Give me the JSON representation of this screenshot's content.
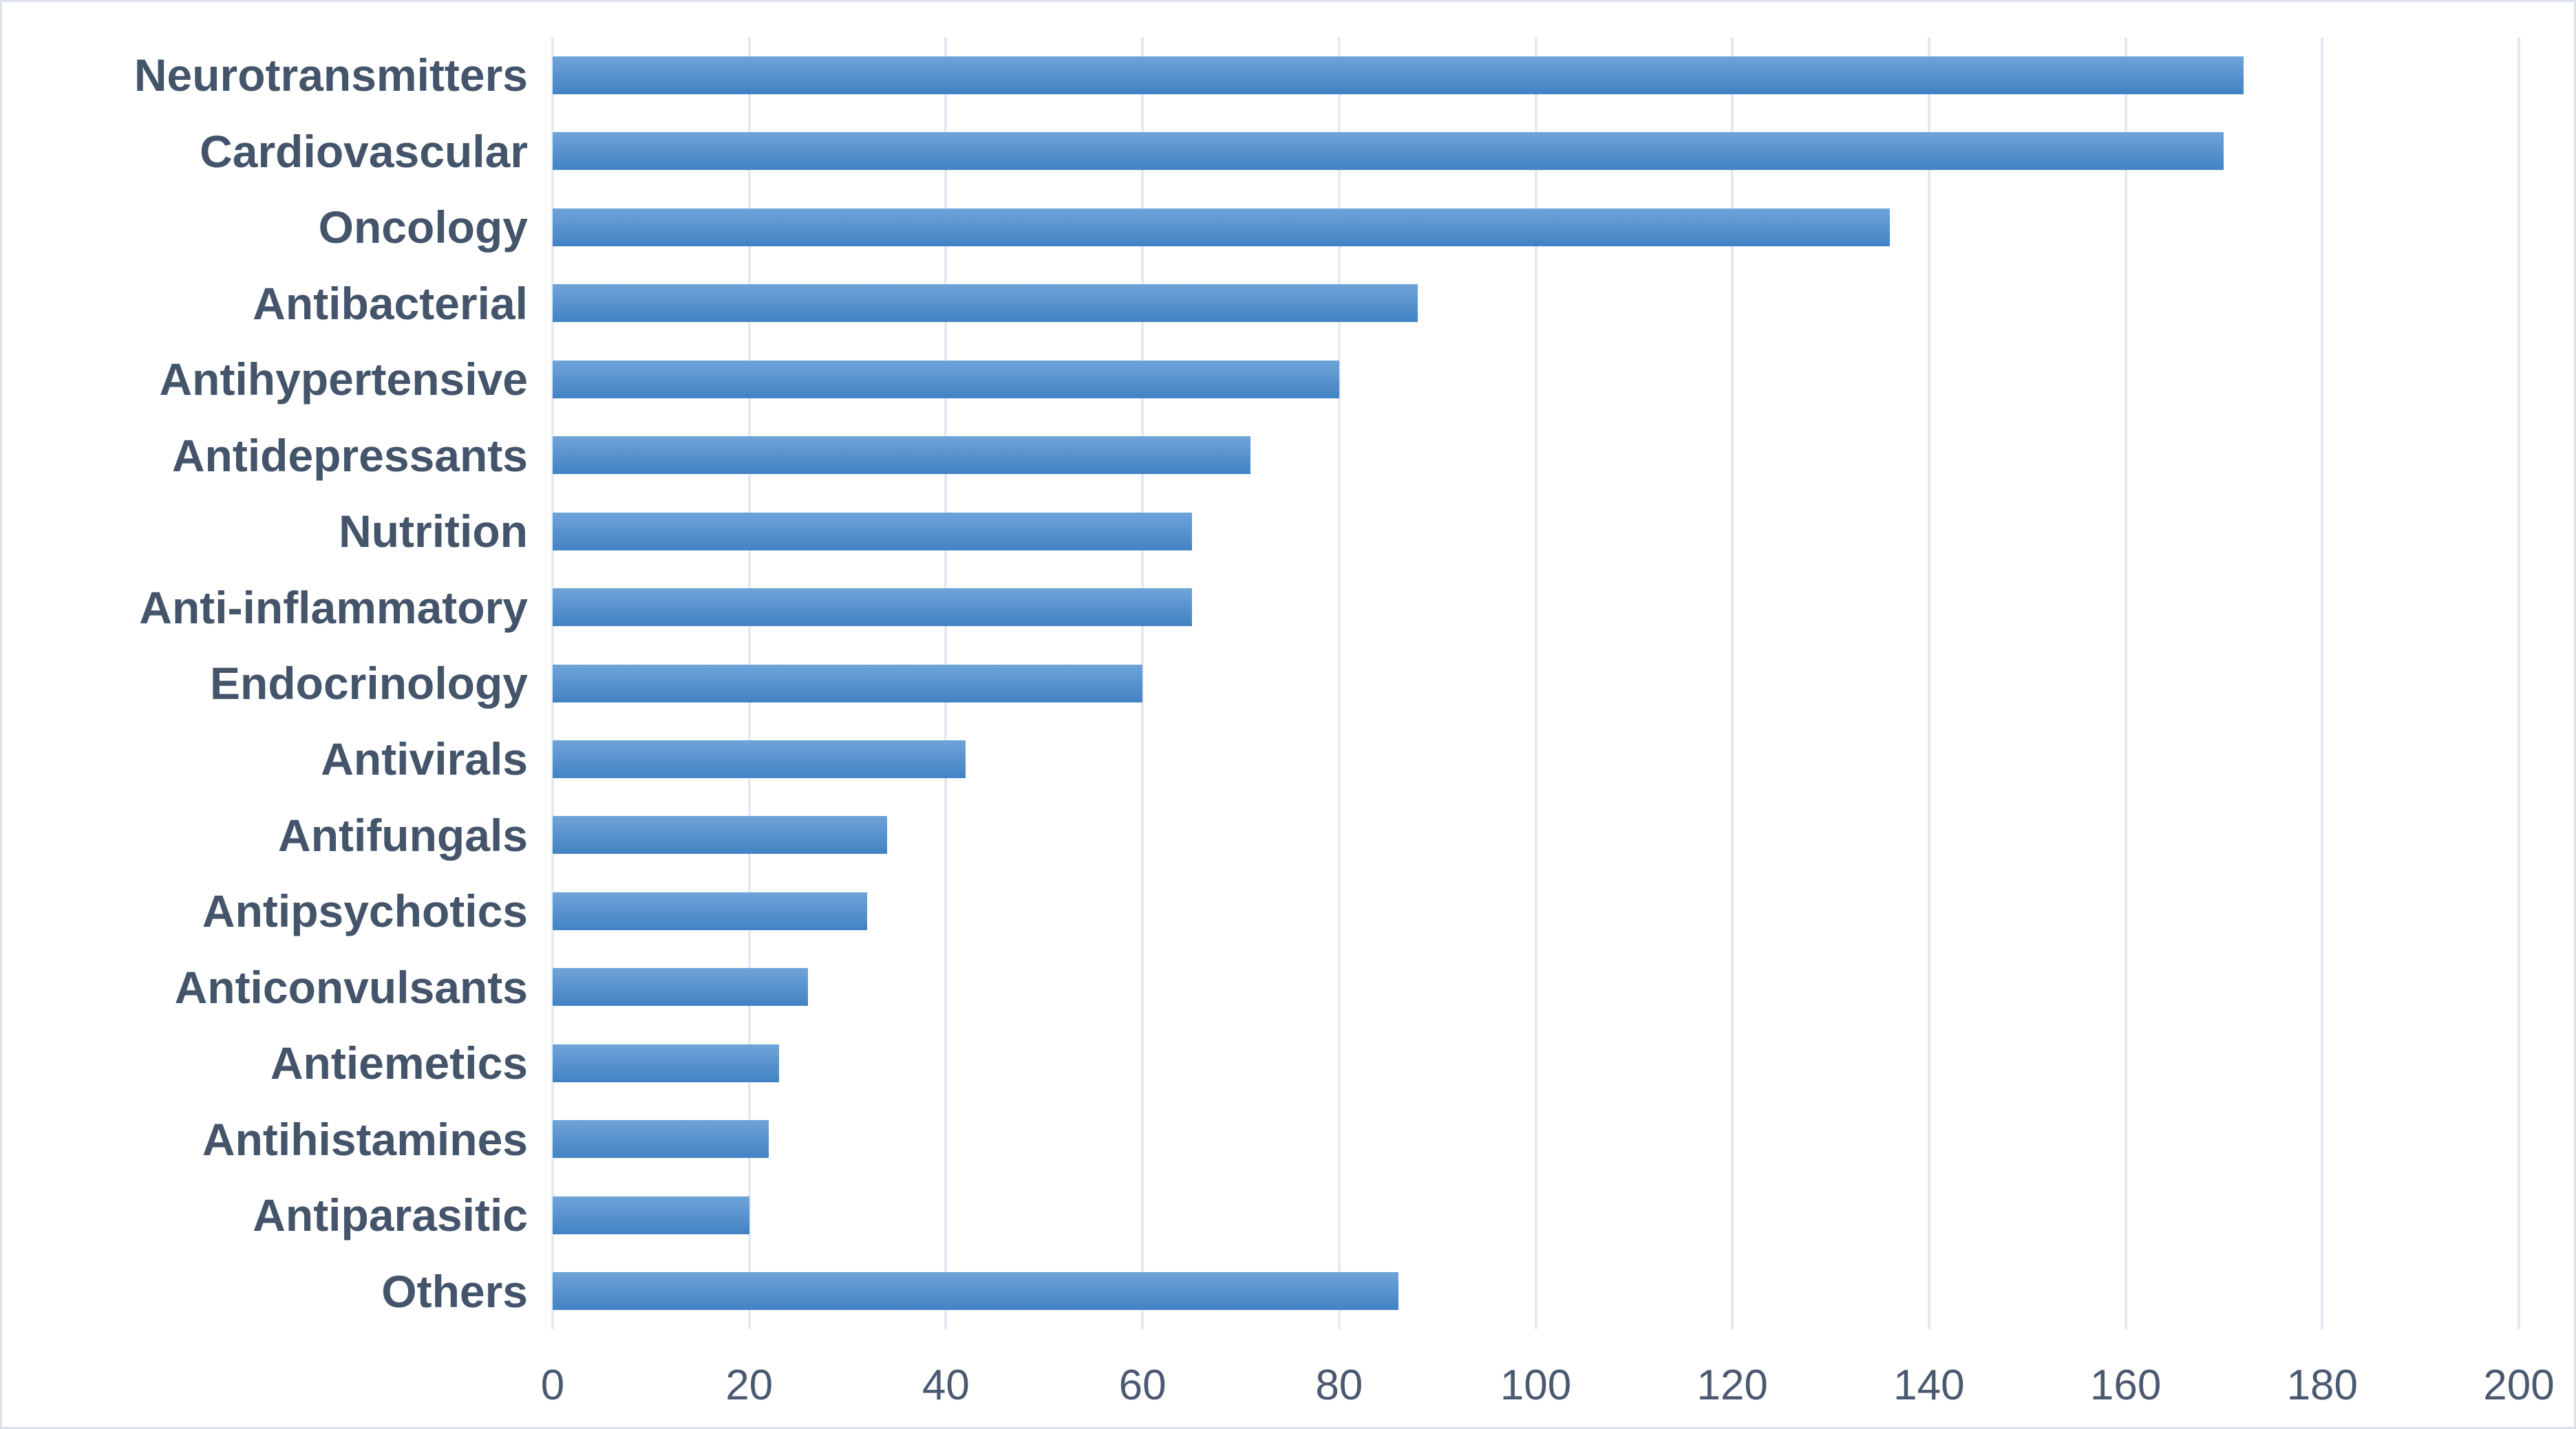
{
  "chart_data": {
    "type": "bar",
    "orientation": "horizontal",
    "title": "",
    "xlabel": "",
    "ylabel": "",
    "categories": [
      "Neurotransmitters",
      "Cardiovascular",
      "Oncology",
      "Antibacterial",
      "Antihypertensive",
      "Antidepressants",
      "Nutrition",
      "Anti-inflammatory",
      "Endocrinology",
      "Antivirals",
      "Antifungals",
      "Antipsychotics",
      "Anticonvulsants",
      "Antiemetics",
      "Antihistamines",
      "Antiparasitic",
      "Others"
    ],
    "values": [
      172,
      170,
      136,
      88,
      80,
      71,
      65,
      65,
      60,
      42,
      34,
      32,
      26,
      23,
      22,
      20,
      86
    ],
    "xlim": [
      0,
      200
    ],
    "x_ticks": [
      0,
      20,
      40,
      60,
      80,
      100,
      120,
      140,
      160,
      180,
      200
    ],
    "grid": "vertical-only",
    "legend": "none",
    "colors": {
      "bar_gradient_top": "#6fa4d9",
      "bar_gradient_bottom": "#4282c3",
      "gridline": "#e4eaf2",
      "category_label": "#44546a",
      "tick_label": "#4a5870",
      "background": "#ffffff",
      "frame_border": "#dde3ed"
    }
  }
}
